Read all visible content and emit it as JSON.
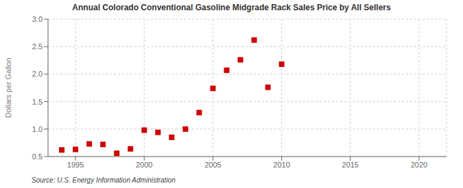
{
  "chart_data": {
    "type": "scatter",
    "title": "Annual Colorado Conventional Gasoline Midgrade Rack Sales Price by All Sellers",
    "y_label": "Dollars per Gallon",
    "annotations": [
      "Source: U.S. Energy Information Administration"
    ],
    "x": [
      1994,
      1995,
      1996,
      1997,
      1998,
      1999,
      2000,
      2001,
      2002,
      2003,
      2004,
      2005,
      2006,
      2007,
      2008,
      2009,
      2010
    ],
    "values": [
      0.62,
      0.63,
      0.73,
      0.72,
      0.56,
      0.64,
      0.98,
      0.94,
      0.85,
      1.0,
      1.3,
      1.74,
      2.07,
      2.26,
      2.62,
      1.76,
      2.18
    ],
    "color": "#cc0000",
    "marker": "square",
    "xlim": [
      1993,
      2022
    ],
    "ylim": [
      0.5,
      3.0
    ],
    "xticks": [
      1995,
      2000,
      2005,
      2010,
      2015,
      2020
    ],
    "yticks": [
      0.5,
      {
        "value": 1,
        "label": "1.0"
      },
      1.5,
      {
        "value": 2,
        "label": "2.0"
      },
      2.5,
      {
        "value": 3,
        "label": "3.0"
      }
    ],
    "grid": true
  }
}
